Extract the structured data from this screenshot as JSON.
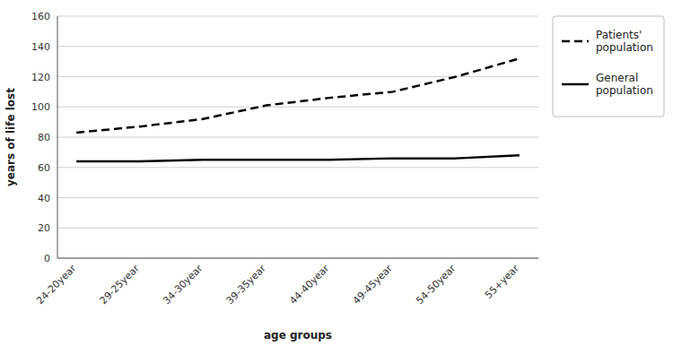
{
  "chart_data": {
    "type": "line",
    "categories": [
      "24-20year",
      "29-25year",
      "34-30year",
      "39-35year",
      "44-40year",
      "49-45year",
      "54-50year",
      "55+year"
    ],
    "series": [
      {
        "name": "Patients'\npopulation",
        "color": "#000000",
        "line_style": "dashed",
        "values": [
          83,
          87,
          92,
          101,
          106,
          110,
          120,
          132
        ]
      },
      {
        "name": "General\npopulation",
        "color": "#000000",
        "line_style": "solid",
        "values": [
          64,
          64,
          65,
          65,
          65,
          66,
          66,
          68
        ]
      }
    ],
    "xlabel": "age groups",
    "ylabel": "years of life lost",
    "ylim": [
      0,
      160
    ],
    "yticks": [
      0,
      20,
      40,
      60,
      80,
      100,
      120,
      140,
      160
    ],
    "grid": true,
    "legend": "right"
  }
}
